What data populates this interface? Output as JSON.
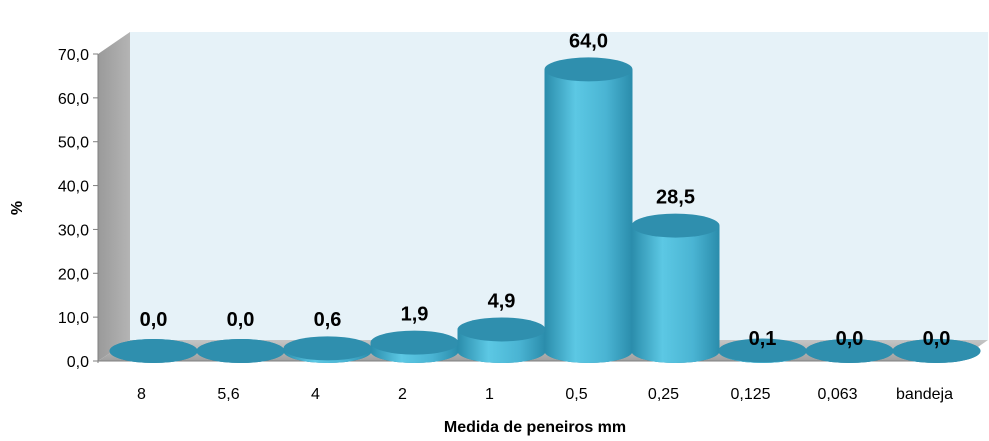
{
  "chart_data": {
    "type": "bar",
    "title": "",
    "xlabel": "Medida de peneiros mm",
    "ylabel": "%",
    "categories": [
      "8",
      "5,6",
      "4",
      "2",
      "1",
      "0,5",
      "0,25",
      "0,125",
      "0,063",
      "bandeja"
    ],
    "values": [
      0.0,
      0.0,
      0.6,
      1.9,
      4.9,
      64.0,
      28.5,
      0.1,
      0.0,
      0.0
    ],
    "value_labels": [
      "0,0",
      "0,0",
      "0,6",
      "1,9",
      "4,9",
      "64,0",
      "28,5",
      "0,1",
      "0,0",
      "0,0"
    ],
    "y_ticks": [
      "0,0",
      "10,0",
      "20,0",
      "30,0",
      "40,0",
      "50,0",
      "60,0",
      "70,0"
    ],
    "ylim": [
      0,
      70
    ],
    "grid": false,
    "legend": "none",
    "style": "3d-cylinder",
    "colors": {
      "bar": "#4cb8d6",
      "bar_dark": "#2a8cab",
      "bar_top": "#2f8fae",
      "wall": "#e6f2f8",
      "side_wall": "#a6a6a6",
      "floor": "#b8b8b8"
    }
  }
}
